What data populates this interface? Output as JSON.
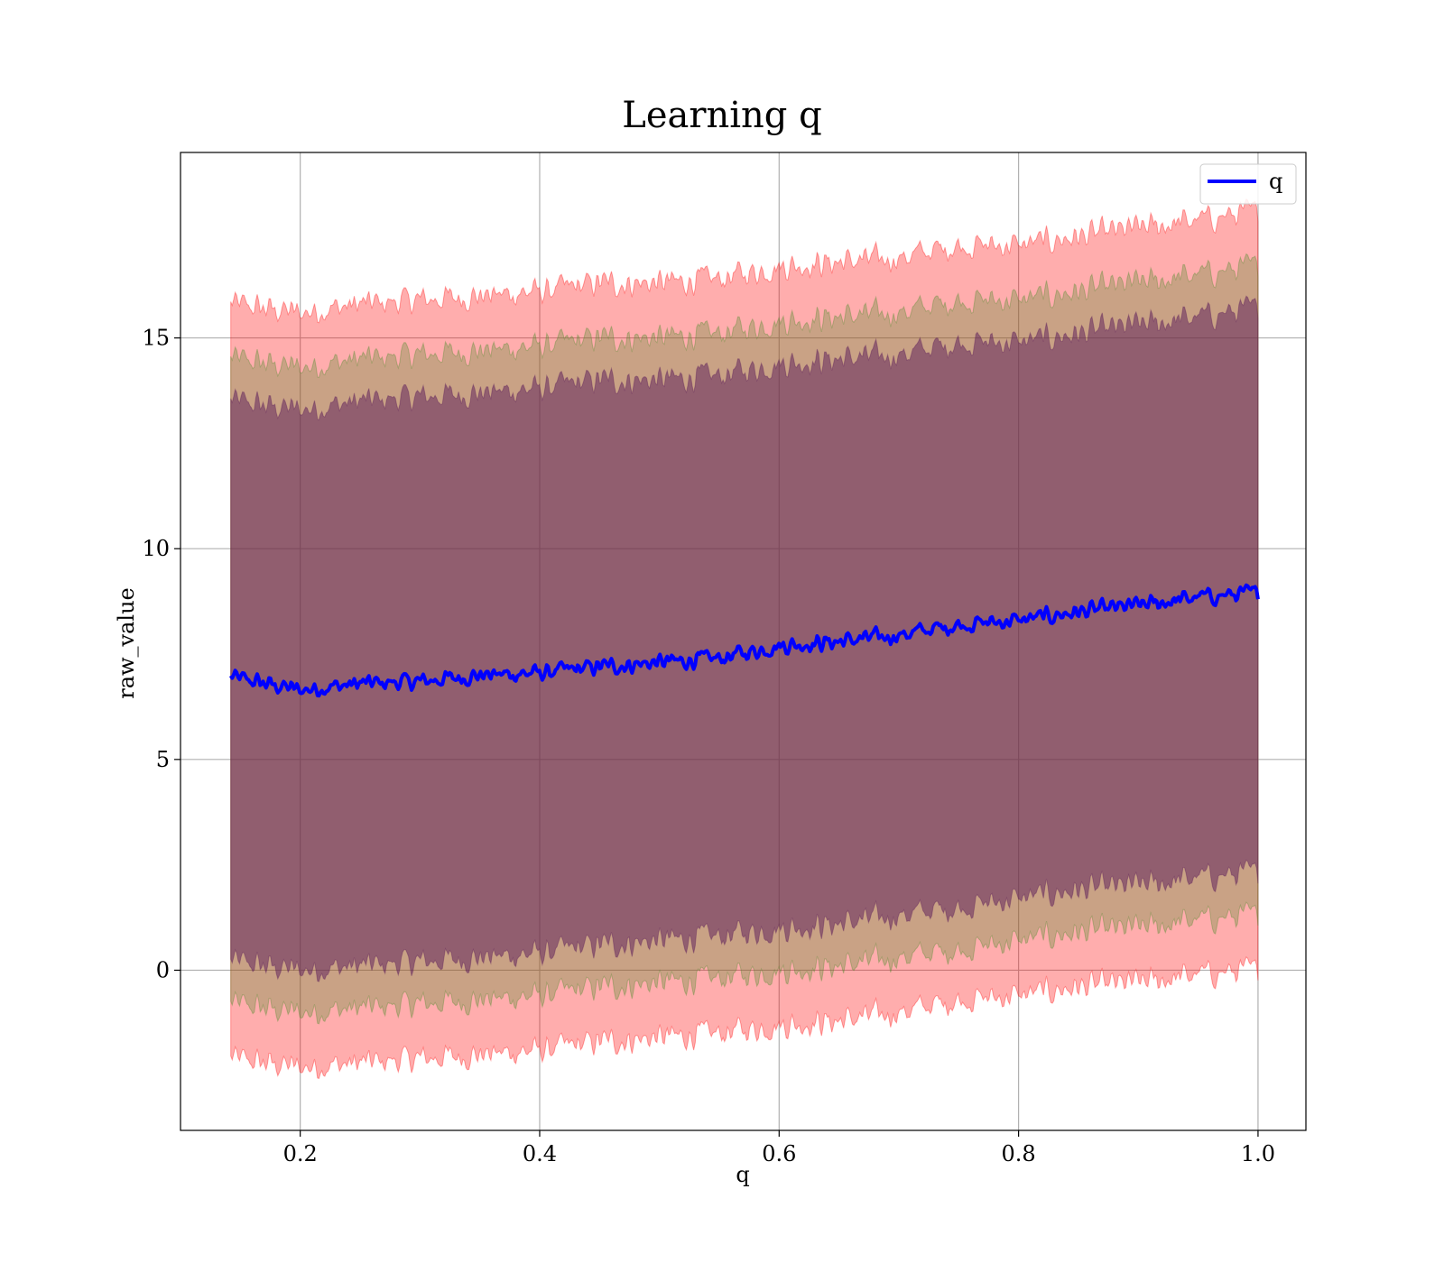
{
  "chart_data": {
    "type": "line",
    "title": "Learning q",
    "xlabel": "q",
    "ylabel": "raw_value",
    "xlim": [
      0.1,
      1.04
    ],
    "ylim": [
      -3.8,
      19.4
    ],
    "x_ticks": [
      0.2,
      0.4,
      0.6,
      0.8,
      1.0
    ],
    "x_tick_labels": [
      "0.2",
      "0.4",
      "0.6",
      "0.8",
      "1.0"
    ],
    "y_ticks": [
      0,
      5,
      10,
      15
    ],
    "y_tick_labels": [
      "0",
      "5",
      "10",
      "15"
    ],
    "grid": true,
    "legend": {
      "position": "top-right",
      "entries": [
        "q"
      ]
    },
    "x_range": [
      0.142,
      1.0
    ],
    "series": [
      {
        "name": "q",
        "color": "#0000ff",
        "x": [
          0.142,
          0.2,
          0.25,
          0.3,
          0.35,
          0.4,
          0.45,
          0.5,
          0.55,
          0.6,
          0.65,
          0.7,
          0.75,
          0.8,
          0.85,
          0.9,
          0.95,
          1.0
        ],
        "y": [
          6.95,
          6.65,
          6.8,
          6.85,
          7.0,
          7.05,
          7.2,
          7.3,
          7.4,
          7.7,
          7.8,
          7.95,
          8.2,
          8.3,
          8.5,
          8.65,
          8.85,
          8.95
        ]
      }
    ],
    "bands": [
      {
        "color": "#ff0000",
        "opacity": 0.32,
        "x": [
          0.142,
          0.2,
          0.25,
          0.3,
          0.35,
          0.4,
          0.45,
          0.5,
          0.55,
          0.6,
          0.65,
          0.7,
          0.75,
          0.8,
          0.85,
          0.9,
          0.95,
          1.0
        ],
        "lower": [
          -2.1,
          -2.3,
          -2.2,
          -2.1,
          -2.0,
          -1.9,
          -1.7,
          -1.6,
          -1.5,
          -1.3,
          -1.2,
          -1.0,
          -0.7,
          -0.6,
          -0.4,
          -0.3,
          -0.1,
          0.0
        ],
        "upper": [
          15.8,
          15.6,
          15.8,
          15.9,
          16.0,
          16.1,
          16.3,
          16.3,
          16.4,
          16.7,
          16.8,
          16.9,
          17.2,
          17.2,
          17.4,
          17.6,
          17.8,
          18.0
        ]
      },
      {
        "color": "#4b8c2a",
        "opacity": 0.3,
        "x": [
          0.142,
          0.2,
          0.25,
          0.3,
          0.35,
          0.4,
          0.45,
          0.5,
          0.55,
          0.6,
          0.65,
          0.7,
          0.75,
          0.8,
          0.85,
          0.9,
          0.95,
          1.0
        ],
        "lower": [
          -0.8,
          -1.0,
          -0.9,
          -0.8,
          -0.7,
          -0.6,
          -0.4,
          -0.3,
          -0.2,
          0.0,
          0.1,
          0.3,
          0.5,
          0.7,
          0.9,
          1.0,
          1.2,
          1.3
        ],
        "upper": [
          14.5,
          14.3,
          14.5,
          14.6,
          14.7,
          14.8,
          15.0,
          15.0,
          15.1,
          15.4,
          15.5,
          15.6,
          15.9,
          15.9,
          16.1,
          16.3,
          16.5,
          16.7
        ]
      },
      {
        "color": "#5a1a5a",
        "opacity": 0.5,
        "x": [
          0.142,
          0.2,
          0.25,
          0.3,
          0.35,
          0.4,
          0.45,
          0.5,
          0.55,
          0.6,
          0.65,
          0.7,
          0.75,
          0.8,
          0.85,
          0.9,
          0.95,
          1.0
        ],
        "lower": [
          0.2,
          0.0,
          0.1,
          0.2,
          0.3,
          0.4,
          0.6,
          0.7,
          0.8,
          1.0,
          1.1,
          1.3,
          1.5,
          1.7,
          1.9,
          2.0,
          2.2,
          2.3
        ],
        "upper": [
          13.5,
          13.3,
          13.5,
          13.6,
          13.7,
          13.8,
          14.0,
          14.0,
          14.1,
          14.4,
          14.5,
          14.6,
          14.9,
          14.9,
          15.1,
          15.3,
          15.5,
          15.7
        ]
      }
    ]
  }
}
